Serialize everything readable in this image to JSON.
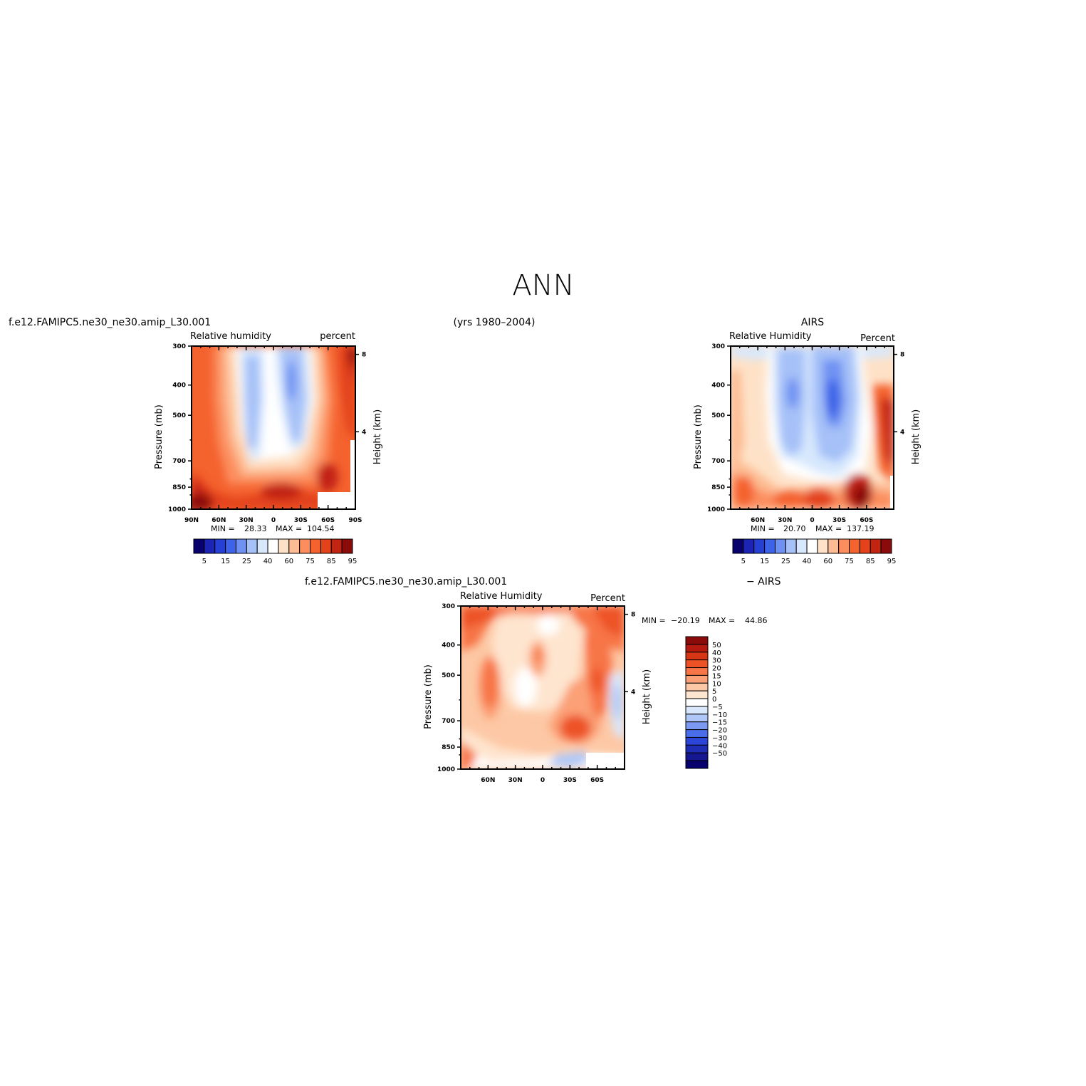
{
  "page": {
    "title": "ANN",
    "years": "(yrs 1980–2004)"
  },
  "palettes": {
    "abs": [
      "#08006e",
      "#1b24b4",
      "#2640d6",
      "#3d64e8",
      "#6f92f2",
      "#a6c1f8",
      "#d7e8fd",
      "#ffffff",
      "#fee2c8",
      "#fdbc93",
      "#fc8e5e",
      "#f4622e",
      "#e3421b",
      "#c22412",
      "#8b0a0a"
    ],
    "diff": [
      "#08006e",
      "#14178f",
      "#1f2db5",
      "#2c45d8",
      "#4a6de9",
      "#7b99f1",
      "#aec7f8",
      "#d9e7fd",
      "#ffffff",
      "#fee5cf",
      "#fdc8a5",
      "#fba077",
      "#f77547",
      "#ed5226",
      "#d73515",
      "#b51a10",
      "#8b0a0a"
    ]
  },
  "chart_data": [
    {
      "type": "heatmap",
      "id": "model",
      "case_label": "f.e12.FAMIPC5.ne30_ne30.amip_L30.001",
      "title": "Relative  humidity",
      "units": "percent",
      "ylabel": "Pressure  (mb)",
      "y2label": "Height  (km)",
      "xticks": [
        "90N",
        "60N",
        "30N",
        "0",
        "30S",
        "60S",
        "90S"
      ],
      "yticks": [
        "300",
        "400",
        "500",
        "700",
        "850",
        "1000"
      ],
      "y2ticks": [
        "8",
        "4"
      ],
      "x": [
        -90,
        90
      ],
      "ylim": [
        1000,
        300
      ],
      "min_label": "MIN =",
      "min_value": "28.33",
      "max_label": "MAX =",
      "max_value": "104.54",
      "colorbar_labels": [
        "5",
        "15",
        "25",
        "40",
        "60",
        "75",
        "85",
        "95"
      ],
      "colorbar_levels": [
        5,
        10,
        15,
        20,
        25,
        30,
        40,
        50,
        60,
        70,
        75,
        80,
        85,
        90,
        95
      ]
    },
    {
      "type": "heatmap",
      "id": "obs",
      "case_label": "AIRS",
      "title": "Relative  Humidity",
      "units": "Percent",
      "ylabel": "Pressure  (mb)",
      "y2label": "Height  (km)",
      "xticks": [
        "60N",
        "30N",
        "0",
        "30S",
        "60S"
      ],
      "yticks": [
        "300",
        "400",
        "500",
        "700",
        "850",
        "1000"
      ],
      "y2ticks": [
        "8",
        "4"
      ],
      "x": [
        -90,
        90
      ],
      "ylim": [
        1000,
        300
      ],
      "min_label": "MIN =",
      "min_value": "20.70",
      "max_label": "MAX =",
      "max_value": "137.19",
      "colorbar_labels": [
        "5",
        "15",
        "25",
        "40",
        "60",
        "75",
        "85",
        "95"
      ],
      "colorbar_levels": [
        5,
        10,
        15,
        20,
        25,
        30,
        40,
        50,
        60,
        70,
        75,
        80,
        85,
        90,
        95
      ]
    },
    {
      "type": "heatmap",
      "id": "diff",
      "case_label": "f.e12.FAMIPC5.ne30_ne30.amip_L30.001",
      "case_label_right": "− AIRS",
      "title": "Relative  Humidity",
      "units": "Percent",
      "ylabel": "Pressure  (mb)",
      "y2label": "Height  (km)",
      "xticks": [
        "60N",
        "30N",
        "0",
        "30S",
        "60S"
      ],
      "yticks": [
        "300",
        "400",
        "500",
        "700",
        "850",
        "1000"
      ],
      "y2ticks": [
        "8",
        "4"
      ],
      "x": [
        -90,
        90
      ],
      "ylim": [
        1000,
        300
      ],
      "min_label": "MIN =",
      "min_value": "−20.19",
      "max_label": "MAX =",
      "max_value": "44.86",
      "colorbar_labels": [
        "50",
        "40",
        "30",
        "20",
        "15",
        "10",
        "5",
        "0",
        "−5",
        "−10",
        "−15",
        "−20",
        "−30",
        "−40",
        "−50"
      ],
      "colorbar_levels": [
        50,
        40,
        30,
        20,
        15,
        10,
        5,
        0,
        -5,
        -10,
        -15,
        -20,
        -30,
        -40,
        -50
      ]
    }
  ]
}
